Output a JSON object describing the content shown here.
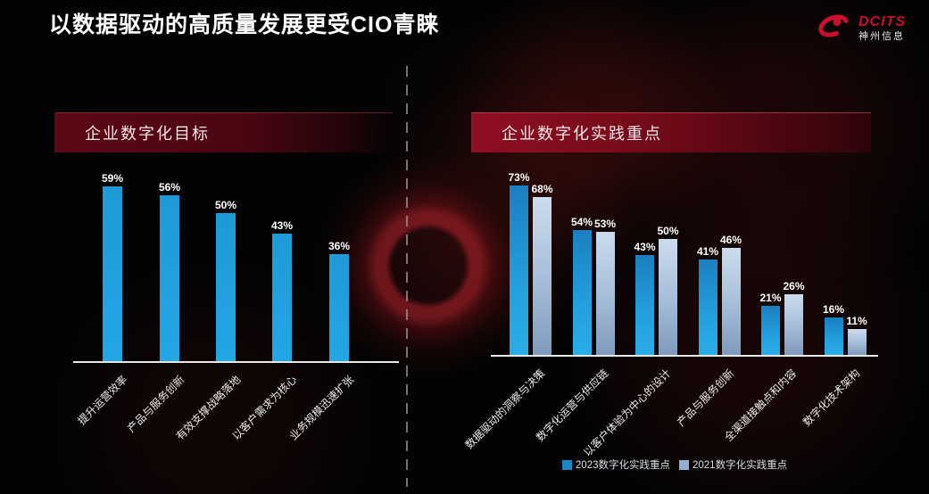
{
  "slide": {
    "title": "以数据驱动的高质量发展更受CIO青睐",
    "logo": {
      "brand": "DCITS",
      "subtitle": "神州信息",
      "color": "#c8102e"
    }
  },
  "left_panel": {
    "header": "企业数字化目标"
  },
  "right_panel": {
    "header": "企业数字化实践重点"
  },
  "unit": "%",
  "chart_data": [
    {
      "type": "bar",
      "title": "企业数字化目标",
      "categories": [
        "提升运营效率",
        "产品与服务创新",
        "有效支撑战略落地",
        "以客户需求为核心",
        "业务规模迅速扩张"
      ],
      "values": [
        59,
        56,
        50,
        43,
        36
      ],
      "value_labels": [
        "59%",
        "56%",
        "50%",
        "43%",
        "36%"
      ],
      "bar_color": "#23a6e4",
      "ylabel": "",
      "xlabel": "",
      "ylim": [
        0,
        70
      ],
      "grid": false,
      "legend_position": "none"
    },
    {
      "type": "bar",
      "title": "企业数字化实践重点",
      "categories": [
        "数据驱动的洞察与决策",
        "数字化运营与供应链",
        "以客户体验为中心的设计",
        "产品与服务创新",
        "全渠道接触点和内容",
        "数字化技术架构"
      ],
      "series": [
        {
          "name": "2023数字化实践重点",
          "values": [
            73,
            54,
            43,
            41,
            21,
            16
          ],
          "color": "#1e9fdd"
        },
        {
          "name": "2021数字化实践重点",
          "values": [
            68,
            53,
            50,
            46,
            26,
            11
          ],
          "color": "#a9c3e0"
        }
      ],
      "ylabel": "",
      "xlabel": "",
      "ylim": [
        0,
        80
      ],
      "grid": false,
      "legend_position": "bottom"
    }
  ]
}
